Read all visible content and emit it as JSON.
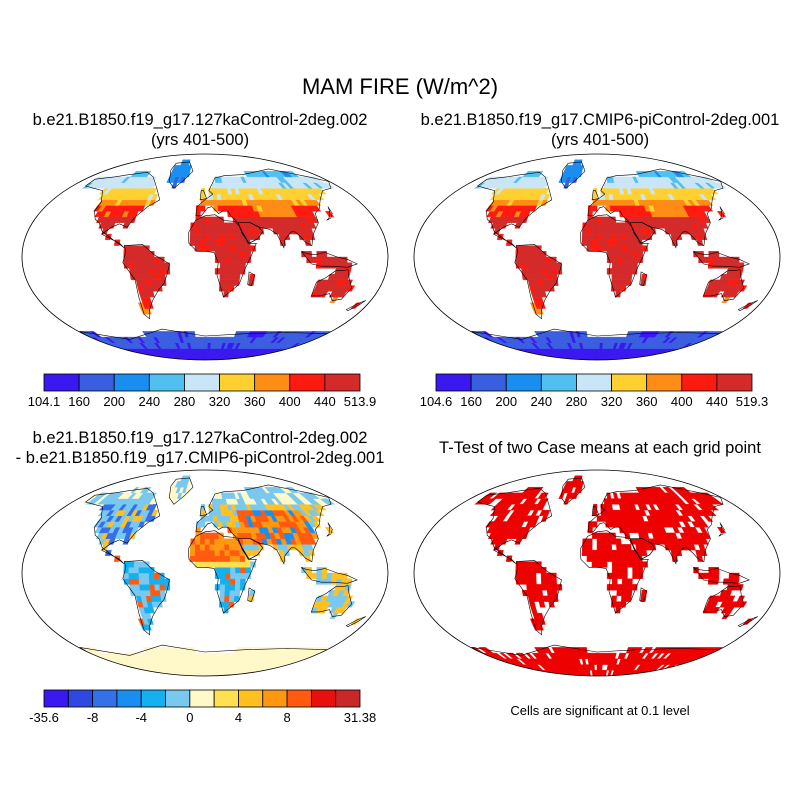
{
  "figure": {
    "title": "MAM FIRE (W/m^2)",
    "note": "Cells are significant at 0.1 level"
  },
  "panels": [
    {
      "id": "case",
      "title_line1": "b.e21.B1850.f19_g17.127kaControl-2deg.002",
      "title_line2": "(yrs 401-500)",
      "colormap": "abs",
      "colorbar": {
        "colors": [
          "#3a18f0",
          "#3a5ee0",
          "#1a8ef0",
          "#50c0f0",
          "#c8e6f8",
          "#ffd030",
          "#ff8c14",
          "#ff1a10",
          "#d42a2a"
        ],
        "tick_labels": [
          "104.1",
          "160",
          "200",
          "240",
          "280",
          "320",
          "360",
          "400",
          "440",
          "513.9"
        ]
      }
    },
    {
      "id": "control",
      "title_line1": "b.e21.B1850.f19_g17.CMIP6-piControl-2deg.001",
      "title_line2": "(yrs 401-500)",
      "colormap": "abs",
      "colorbar": {
        "colors": [
          "#3a18f0",
          "#3a5ee0",
          "#1a8ef0",
          "#50c0f0",
          "#c8e6f8",
          "#ffd030",
          "#ff8c14",
          "#ff1a10",
          "#d42a2a"
        ],
        "tick_labels": [
          "104.6",
          "160",
          "200",
          "240",
          "280",
          "320",
          "360",
          "400",
          "440",
          "519.3"
        ]
      }
    },
    {
      "id": "difference",
      "title_line1": "b.e21.B1850.f19_g17.127kaControl-2deg.002",
      "title_line2": "- b.e21.B1850.f19_g17.CMIP6-piControl-2deg.001",
      "colormap": "diff",
      "colorbar": {
        "colors": [
          "#3a18f0",
          "#2e48e0",
          "#3470e8",
          "#1a8ef0",
          "#14b0f0",
          "#78c8f0",
          "#fff8c8",
          "#ffe050",
          "#ffc020",
          "#ff9810",
          "#ff5a10",
          "#e80f0f",
          "#c82828"
        ],
        "tick_labels": [
          "-35.6",
          "",
          "-8",
          "",
          "-4",
          "",
          "0",
          "",
          "4",
          "",
          "8",
          "",
          "",
          "31.38"
        ]
      }
    },
    {
      "id": "ttest",
      "title_line1": "T-Test of two Case means at each grid point",
      "colormap": "sig",
      "significance_color": "#ee0000"
    }
  ]
}
